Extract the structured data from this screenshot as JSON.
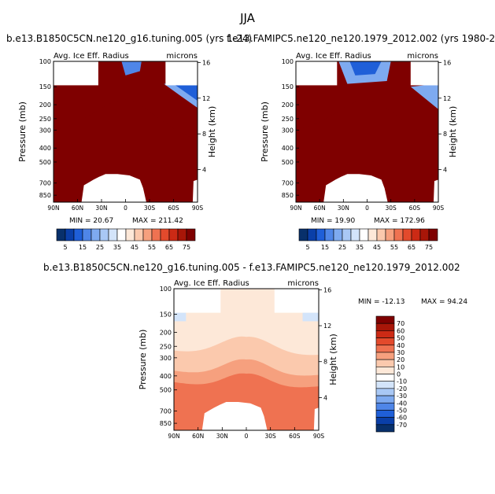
{
  "main_title": "JJA",
  "colors": {
    "scale_div": [
      "#08306b",
      "#0a3fa8",
      "#1f5fd8",
      "#4f86e8",
      "#7eaaf0",
      "#a9c8f5",
      "#d3e4fa",
      "#ffffff",
      "#fde8d8",
      "#fbc9ad",
      "#f6a07e",
      "#ef7251",
      "#e34a2c",
      "#cc2a15",
      "#a81608",
      "#7f0000"
    ],
    "scale_pos": [
      "#08306b",
      "#0a3fa8",
      "#1f5fd8",
      "#4f86e8",
      "#7eaaf0",
      "#a9c8f5",
      "#d3e4fa",
      "#ffffff",
      "#fde8d8",
      "#fbc9ad",
      "#f6a07e",
      "#ef7251",
      "#e34a2c",
      "#cc2a15",
      "#a81608",
      "#7f0000"
    ]
  },
  "chart_data": [
    {
      "type": "heatmap",
      "title": "b.e13.B1850C5CN.ne120_g16.tuning.005 (yrs 1-24)",
      "left_label": "Avg. Ice Eff. Radius",
      "units": "microns",
      "ylabel": "Pressure (mb)",
      "ylabel_right": "Height (km)",
      "x_ticks": [
        "90N",
        "60N",
        "30N",
        "0",
        "30S",
        "60S",
        "90S"
      ],
      "y_ticks": [
        "100",
        "150",
        "200",
        "250",
        "300",
        "400",
        "500",
        "700",
        "850"
      ],
      "y_ticks_right": [
        "16",
        "12",
        "8",
        "4"
      ],
      "min_label": "MIN =  20.67",
      "max_label": "MAX = 211.42",
      "colorbar_labels": [
        "5",
        "15",
        "25",
        "35",
        "45",
        "55",
        "65",
        "75"
      ],
      "xlim": [
        90,
        -90
      ],
      "ylim": [
        1000,
        100
      ]
    },
    {
      "type": "heatmap",
      "title": "f.e13.FAMIPC5.ne120_ne120.1979_2012.002 (yrs 1980-2",
      "left_label": "Avg. Ice Eff. Radius",
      "units": "microns",
      "ylabel": "Pressure (mb)",
      "ylabel_right": "Height (km)",
      "x_ticks": [
        "90N",
        "60N",
        "30N",
        "0",
        "30S",
        "60S",
        "90S"
      ],
      "y_ticks": [
        "100",
        "150",
        "200",
        "250",
        "300",
        "400",
        "500",
        "700",
        "850"
      ],
      "y_ticks_right": [
        "16",
        "12",
        "8",
        "4"
      ],
      "min_label": "MIN =  19.90",
      "max_label": "MAX = 172.96",
      "colorbar_labels": [
        "5",
        "15",
        "25",
        "35",
        "45",
        "55",
        "65",
        "75"
      ],
      "xlim": [
        90,
        -90
      ],
      "ylim": [
        1000,
        100
      ]
    },
    {
      "type": "heatmap",
      "title": "b.e13.B1850C5CN.ne120_g16.tuning.005 - f.e13.FAMIPC5.ne120_ne120.1979_2012.002",
      "left_label": "Avg. Ice Eff. Radius",
      "units": "microns",
      "ylabel": "Pressure (mb)",
      "ylabel_right": "Height (km)",
      "x_ticks": [
        "90N",
        "60N",
        "30N",
        "0",
        "30S",
        "60S",
        "90S"
      ],
      "y_ticks": [
        "100",
        "150",
        "200",
        "250",
        "300",
        "400",
        "500",
        "700",
        "850"
      ],
      "y_ticks_right": [
        "16",
        "12",
        "8",
        "4"
      ],
      "min_label": "MIN = -12.13",
      "max_label": "MAX =  94.24",
      "colorbar_labels": [
        "70",
        "60",
        "50",
        "40",
        "30",
        "20",
        "10",
        "0",
        "-10",
        "-20",
        "-30",
        "-40",
        "-50",
        "-60",
        "-70"
      ],
      "xlim": [
        90,
        -90
      ],
      "ylim": [
        1000,
        100
      ]
    }
  ]
}
